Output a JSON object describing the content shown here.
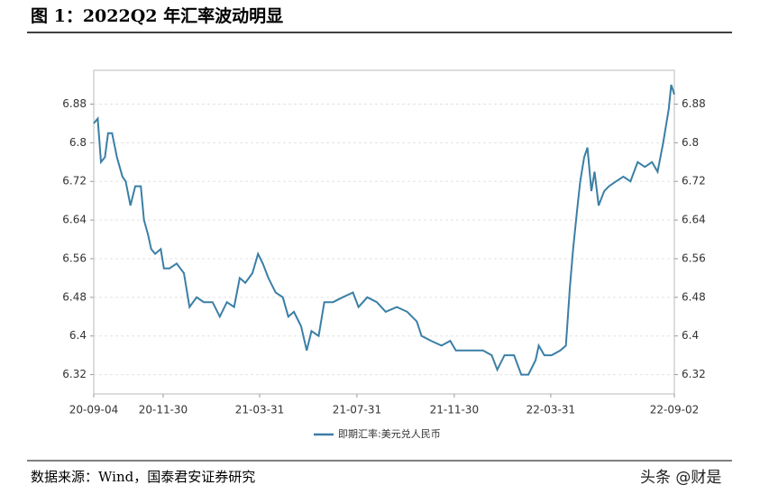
{
  "chart_data": {
    "type": "line",
    "title": "图 1：2022Q2 年汇率波动明显",
    "x": [
      "20-09-04",
      "20-09-09",
      "20-09-13",
      "20-09-18",
      "20-09-22",
      "20-09-27",
      "20-10-03",
      "20-10-10",
      "20-10-14",
      "20-10-20",
      "20-10-26",
      "20-11-02",
      "20-11-06",
      "20-11-11",
      "20-11-15",
      "20-11-20",
      "20-11-27",
      "20-12-01",
      "20-12-08",
      "20-12-17",
      "20-12-26",
      "21-01-02",
      "21-01-11",
      "21-01-20",
      "21-01-31",
      "21-02-09",
      "21-02-18",
      "21-02-27",
      "21-03-06",
      "21-03-13",
      "21-03-22",
      "21-03-29",
      "21-04-04",
      "21-04-11",
      "21-04-20",
      "21-04-29",
      "21-05-06",
      "21-05-13",
      "21-05-22",
      "21-05-29",
      "21-06-04",
      "21-06-13",
      "21-06-20",
      "21-07-01",
      "21-07-13",
      "21-07-26",
      "21-08-02",
      "21-08-13",
      "21-08-25",
      "21-09-05",
      "21-09-19",
      "21-10-02",
      "21-10-14",
      "21-10-20",
      "21-11-01",
      "21-11-14",
      "21-11-25",
      "21-12-02",
      "21-12-11",
      "21-12-23",
      "22-01-05",
      "22-01-16",
      "22-01-23",
      "22-02-01",
      "22-02-13",
      "22-02-22",
      "22-03-03",
      "22-03-12",
      "22-03-16",
      "22-03-23",
      "22-04-01",
      "22-04-12",
      "22-04-19",
      "22-04-24",
      "22-04-28",
      "22-05-03",
      "22-05-07",
      "22-05-12",
      "22-05-16",
      "22-05-21",
      "22-05-25",
      "22-05-30",
      "22-06-06",
      "22-06-12",
      "22-06-21",
      "22-06-30",
      "22-07-09",
      "22-07-18",
      "22-07-27",
      "22-08-05",
      "22-08-12",
      "22-08-19",
      "22-08-26",
      "22-08-29",
      "22-09-02"
    ],
    "series": [
      {
        "name": "即期汇率:美元兑人民币",
        "color": "#3a7fa6",
        "values": [
          6.84,
          6.85,
          6.76,
          6.77,
          6.82,
          6.82,
          6.77,
          6.73,
          6.72,
          6.67,
          6.71,
          6.71,
          6.64,
          6.61,
          6.58,
          6.57,
          6.58,
          6.54,
          6.54,
          6.55,
          6.53,
          6.46,
          6.48,
          6.47,
          6.47,
          6.44,
          6.47,
          6.46,
          6.52,
          6.51,
          6.53,
          6.57,
          6.55,
          6.52,
          6.49,
          6.48,
          6.44,
          6.45,
          6.42,
          6.37,
          6.41,
          6.4,
          6.47,
          6.47,
          6.48,
          6.49,
          6.46,
          6.48,
          6.47,
          6.45,
          6.46,
          6.45,
          6.43,
          6.4,
          6.39,
          6.38,
          6.39,
          6.37,
          6.37,
          6.37,
          6.37,
          6.36,
          6.33,
          6.36,
          6.36,
          6.32,
          6.32,
          6.35,
          6.38,
          6.36,
          6.36,
          6.37,
          6.38,
          6.5,
          6.58,
          6.66,
          6.72,
          6.77,
          6.79,
          6.7,
          6.74,
          6.67,
          6.7,
          6.71,
          6.72,
          6.73,
          6.72,
          6.76,
          6.75,
          6.76,
          6.74,
          6.8,
          6.87,
          6.92,
          6.9
        ]
      }
    ],
    "xlim": [
      "20-09-04",
      "22-09-02"
    ],
    "xticks": [
      "20-09-04",
      "20-11-30",
      "21-03-31",
      "21-07-31",
      "21-11-30",
      "22-03-31",
      "22-09-02"
    ],
    "ylim": [
      6.28,
      6.95
    ],
    "yticks": [
      6.32,
      6.4,
      6.48,
      6.56,
      6.64,
      6.72,
      6.8,
      6.88
    ],
    "y2lim": [
      6.28,
      6.95
    ],
    "y2ticks": [
      6.32,
      6.4,
      6.48,
      6.56,
      6.64,
      6.72,
      6.8,
      6.88
    ],
    "grid": true,
    "legend": "bottom"
  },
  "source": "数据来源：Wind，国泰君安证券研究",
  "watermark": "头条 @财是"
}
